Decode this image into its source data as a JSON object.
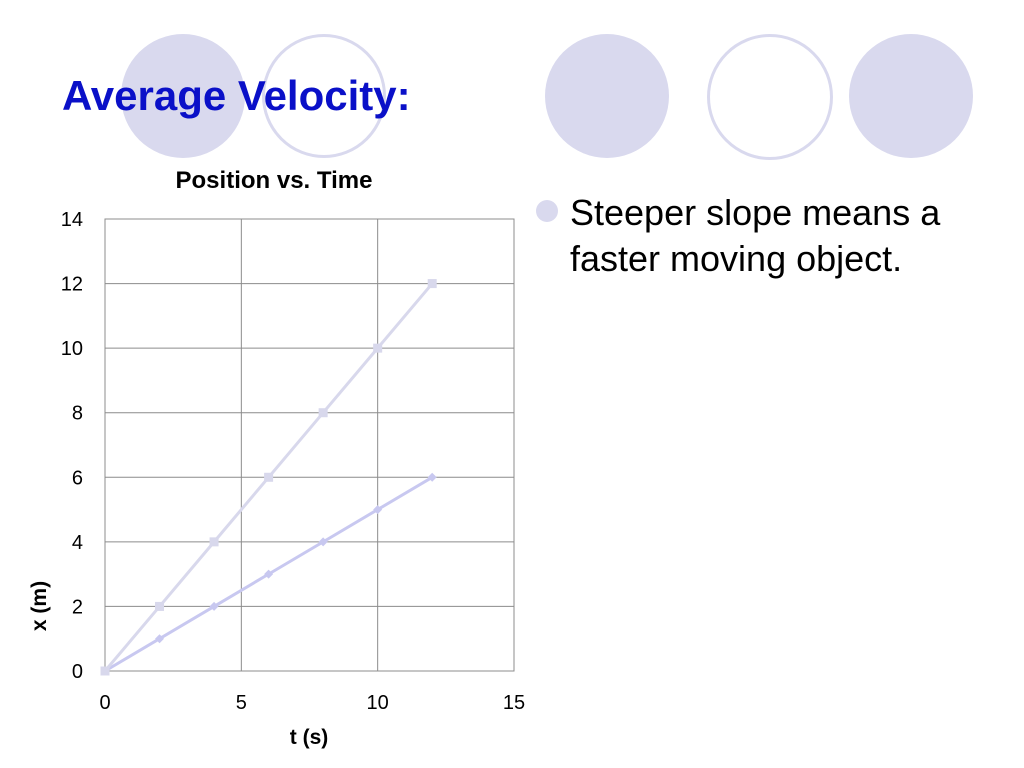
{
  "slide": {
    "title": "Average Velocity:",
    "title_color": "#0a10c8",
    "circle_color": "#d9d9ee",
    "bullets": [
      {
        "text": "Steeper slope means a faster moving object."
      }
    ],
    "bullet_color": "#d9d9ee"
  },
  "chart_data": {
    "type": "line",
    "title": "Position vs. Time",
    "xlabel": "t (s)",
    "ylabel": "x (m)",
    "xlim": [
      0,
      15
    ],
    "ylim": [
      0,
      14
    ],
    "xticks": [
      0,
      5,
      10,
      15
    ],
    "yticks": [
      0,
      2,
      4,
      6,
      8,
      10,
      12,
      14
    ],
    "grid": true,
    "series": [
      {
        "x": [
          0,
          2,
          4,
          6,
          8,
          10,
          12
        ],
        "y": [
          0,
          1,
          2,
          3,
          4,
          5,
          6
        ],
        "color": "#c8c8f0",
        "marker": "diamond"
      },
      {
        "x": [
          0,
          2,
          4,
          6,
          8,
          10,
          12
        ],
        "y": [
          0,
          2,
          4,
          6,
          8,
          10,
          12
        ],
        "color": "#d8d8ec",
        "marker": "square"
      }
    ]
  }
}
